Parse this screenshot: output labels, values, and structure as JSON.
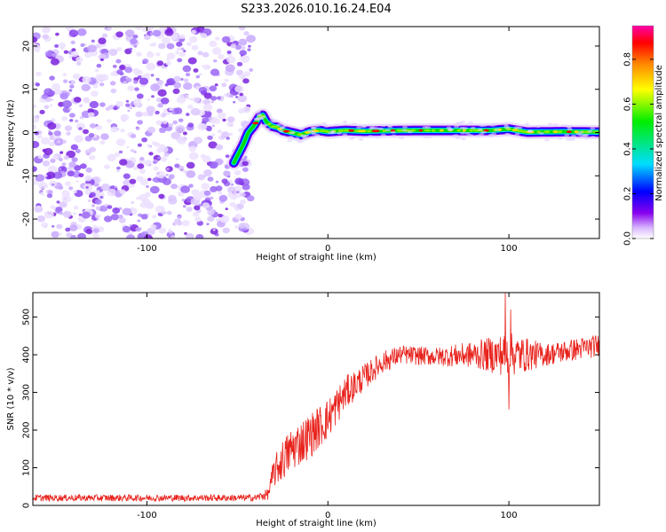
{
  "figure_title": "S233.2026.010.16.24.E04",
  "chart_data": [
    {
      "type": "heatmap",
      "title": "S233.2026.010.16.24.E04",
      "xlabel": "Height of straight line (km)",
      "ylabel": "Frequency (Hz)",
      "xlim": [
        -163,
        150
      ],
      "ylim": [
        -24.5,
        24.5
      ],
      "xticks": [
        -100,
        0,
        100
      ],
      "yticks": [
        -20,
        -10,
        0,
        10,
        20
      ],
      "noise_region_x": [
        -163,
        -45
      ],
      "ridge": {
        "x": [
          -52,
          -47,
          -44,
          -41,
          -38,
          -36,
          -34,
          -31,
          -28,
          -25,
          -20,
          -15,
          -10,
          -5,
          0,
          10,
          20,
          30,
          50,
          70,
          90,
          100,
          110,
          130,
          150
        ],
        "y": [
          -7,
          -3,
          0,
          1.5,
          3.5,
          4,
          2.5,
          1.5,
          1.2,
          0.5,
          0,
          -0.5,
          0.2,
          0.5,
          0.2,
          0.5,
          0.3,
          0.4,
          0.5,
          0.5,
          0.5,
          0.8,
          0.1,
          0.2,
          0.1
        ]
      },
      "colorbar": {
        "label": "Normalized spectral amplitude",
        "range": [
          0,
          0.95
        ],
        "ticks": [
          0.0,
          0.2,
          0.4,
          0.6,
          0.8
        ],
        "tick_labels": [
          "0.0",
          "0.2",
          "0.4",
          "0.6",
          "0.8"
        ],
        "colors": [
          "#ffffff",
          "#bb88ff",
          "#8800ee",
          "#0000ff",
          "#00ddff",
          "#00ee00",
          "#ffff00",
          "#ff8800",
          "#ff0000",
          "#ff00aa"
        ]
      }
    },
    {
      "type": "line",
      "xlabel": "Height of straight line (km)",
      "ylabel": "SNR (10 * v/v)",
      "xlim": [
        -163,
        150
      ],
      "ylim": [
        0,
        565
      ],
      "xticks": [
        -100,
        0,
        100
      ],
      "yticks": [
        0,
        100,
        200,
        300,
        400,
        500
      ],
      "series": [
        {
          "name": "SNR",
          "color": "#e8221c",
          "trend_x": [
            -163,
            -40,
            -33,
            -30,
            -25,
            -20,
            -10,
            0,
            10,
            20,
            30,
            40,
            60,
            80,
            100,
            120,
            150
          ],
          "trend_y": [
            20,
            20,
            30,
            85,
            120,
            150,
            185,
            230,
            300,
            340,
            380,
            400,
            395,
            400,
            400,
            400,
            425
          ],
          "noise_amplitude_y": [
            9,
            9,
            15,
            40,
            55,
            60,
            60,
            55,
            45,
            35,
            30,
            25,
            25,
            35,
            60,
            30,
            30
          ],
          "spike_x": [
            98,
            100,
            101
          ],
          "spike_y": [
            565,
            255,
            520
          ]
        }
      ]
    }
  ]
}
